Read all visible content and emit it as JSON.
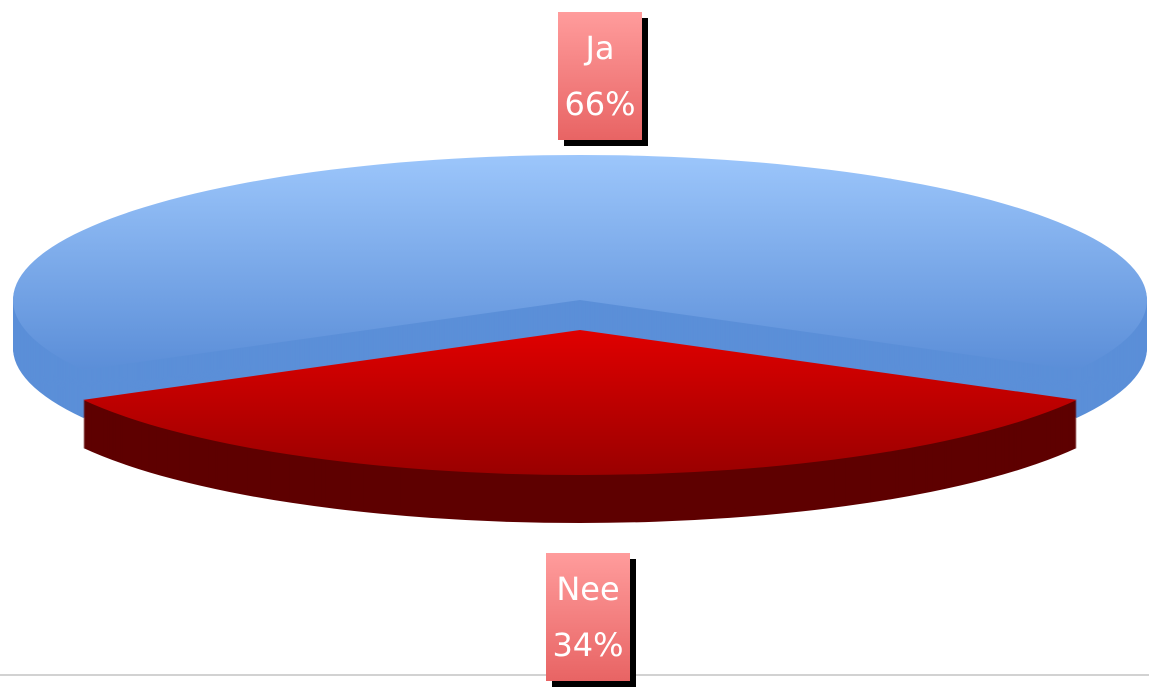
{
  "chart_data": {
    "type": "pie",
    "categories": [
      "Ja",
      "Nee"
    ],
    "values": [
      66,
      34
    ],
    "value_labels": [
      "66%",
      "34%"
    ],
    "colors": [
      "#7aa9ec",
      "#c80000"
    ]
  }
}
